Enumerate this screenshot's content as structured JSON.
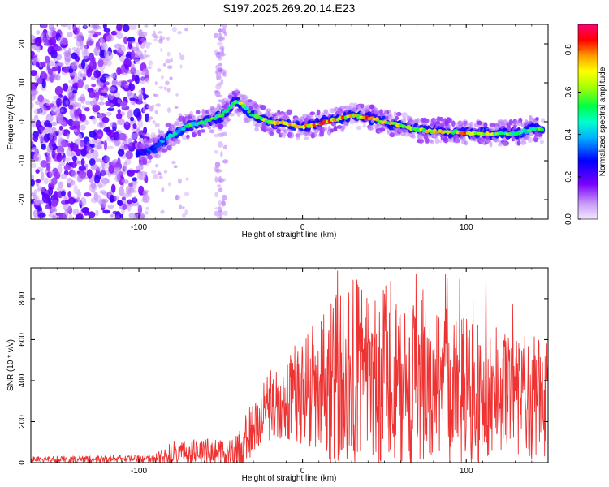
{
  "title": "S197.2025.269.20.14.E23",
  "colors": {
    "snr_line": "#ee3333",
    "axis": "#000000",
    "background": "#ffffff"
  },
  "chart_data": [
    {
      "type": "heatmap",
      "name": "spectrogram",
      "xlabel": "Height of straight line (km)",
      "ylabel": "Frequency (Hz)",
      "xlim": [
        -166,
        150
      ],
      "ylim": [
        -25,
        25
      ],
      "xticks": [
        -100,
        0,
        100
      ],
      "yticks": [
        -20,
        -10,
        0,
        10,
        20
      ],
      "colorbar": {
        "label": "Normalized spectral amplitude",
        "range": [
          0,
          0.92
        ],
        "ticks": [
          "0.0",
          "0.2",
          "0.4",
          "0.6",
          "0.8"
        ],
        "colormap": [
          "#f4e8ff",
          "#d8b4fe",
          "#7a00ff",
          "#0000ff",
          "#00d8ff",
          "#00ff66",
          "#88ff00",
          "#ffff00",
          "#ff8000",
          "#ff0000",
          "#ff0066"
        ]
      },
      "ridge": {
        "x": [
          -100,
          -90,
          -80,
          -70,
          -60,
          -50,
          -40,
          -30,
          -20,
          -10,
          0,
          10,
          20,
          30,
          40,
          50,
          60,
          70,
          80,
          90,
          100,
          110,
          120,
          130,
          140,
          147
        ],
        "y": [
          -8,
          -6.5,
          -3.5,
          -1,
          0,
          1.5,
          5.5,
          1.5,
          0,
          -0.5,
          -1.5,
          -0.5,
          0.5,
          1.5,
          1,
          0,
          -1,
          -2,
          -2.5,
          -2.5,
          -3,
          -3,
          -3,
          -3,
          -2,
          -2
        ],
        "amplitude": [
          0.3,
          0.35,
          0.45,
          0.55,
          0.6,
          0.6,
          0.7,
          0.55,
          0.75,
          0.8,
          0.75,
          0.8,
          0.82,
          0.82,
          0.8,
          0.75,
          0.7,
          0.72,
          0.75,
          0.72,
          0.8,
          0.7,
          0.65,
          0.6,
          0.55,
          0.7
        ]
      },
      "noise_region_x": [
        -166,
        -95
      ],
      "noise_column_x": -50
    },
    {
      "type": "line",
      "name": "snr",
      "xlabel": "Height of straight line (km)",
      "ylabel": "SNR (10 * v/v)",
      "xlim": [
        -166,
        150
      ],
      "ylim": [
        0,
        950
      ],
      "xticks": [
        -100,
        0,
        100
      ],
      "yticks": [
        0,
        200,
        400,
        600,
        800
      ],
      "envelope": {
        "x": [
          -166,
          -120,
          -90,
          -80,
          -70,
          -60,
          -45,
          -40,
          -30,
          -20,
          -10,
          0,
          10,
          20,
          30,
          40,
          50,
          60,
          70,
          80,
          90,
          100,
          110,
          120,
          130,
          140,
          150
        ],
        "base": [
          15,
          15,
          20,
          45,
          50,
          50,
          45,
          60,
          180,
          280,
          320,
          350,
          380,
          400,
          440,
          450,
          440,
          420,
          400,
          380,
          360,
          340,
          330,
          320,
          300,
          320,
          320
        ],
        "amplitude": [
          15,
          20,
          20,
          60,
          60,
          70,
          60,
          90,
          140,
          170,
          220,
          260,
          320,
          430,
          450,
          470,
          470,
          430,
          420,
          400,
          380,
          360,
          360,
          340,
          300,
          310,
          320
        ],
        "max_value": 940,
        "n_points": 1200
      }
    }
  ]
}
